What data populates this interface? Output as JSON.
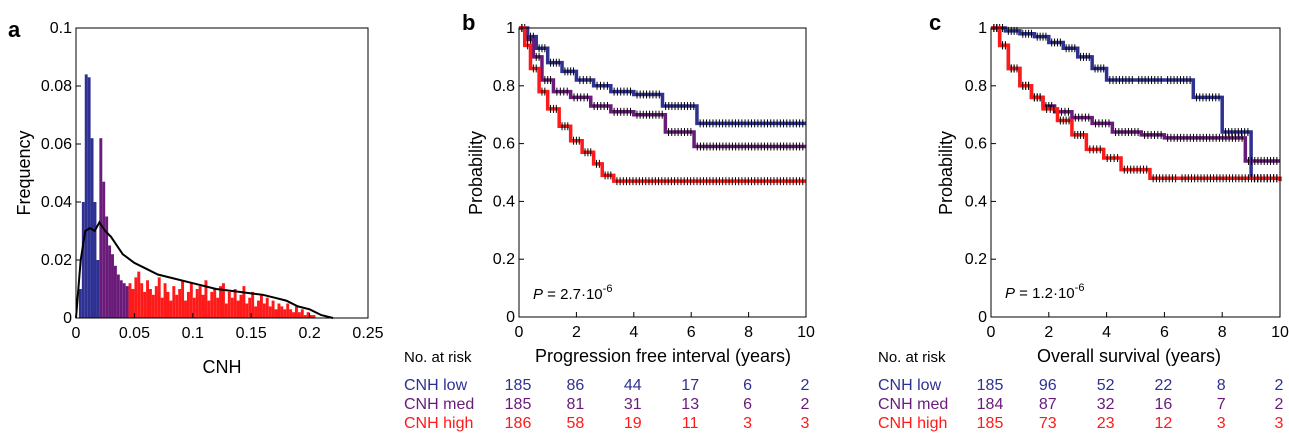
{
  "colors": {
    "low": "#2e3192",
    "med": "#6a1b7a",
    "high": "#ff1a1a",
    "line": "#000000"
  },
  "chart_data": [
    {
      "panel": "a",
      "type": "bar",
      "xlabel": "CNH",
      "ylabel": "Frequency",
      "xlim": [
        0,
        0.25
      ],
      "ylim": [
        0,
        0.1
      ],
      "xticks": [
        "0",
        "0.05",
        "0.1",
        "0.15",
        "0.2",
        "0.25"
      ],
      "yticks": [
        "0",
        "0.02",
        "0.04",
        "0.06",
        "0.08",
        "0.1"
      ],
      "bin_width": 0.0025,
      "bins_low": [
        0.0,
        0.01,
        0.04,
        0.084,
        0.083,
        0.062,
        0.04,
        0.02
      ],
      "bins_med_start": 0.02,
      "bins_med": [
        0.062,
        0.047,
        0.035,
        0.025,
        0.022,
        0.018,
        0.015,
        0.013,
        0.012,
        0.011
      ],
      "bins_high_start": 0.045,
      "bins_high": [
        0.012,
        0.01,
        0.014,
        0.016,
        0.012,
        0.009,
        0.013,
        0.01,
        0.008,
        0.011,
        0.014,
        0.007,
        0.012,
        0.009,
        0.006,
        0.011,
        0.008,
        0.01,
        0.013,
        0.006,
        0.009,
        0.012,
        0.007,
        0.01,
        0.011,
        0.008,
        0.013,
        0.006,
        0.009,
        0.01,
        0.007,
        0.011,
        0.012,
        0.005,
        0.009,
        0.007,
        0.01,
        0.006,
        0.008,
        0.011,
        0.005,
        0.007,
        0.009,
        0.004,
        0.006,
        0.008,
        0.005,
        0.007,
        0.004,
        0.006,
        0.003,
        0.005,
        0.004,
        0.003,
        0.005,
        0.003,
        0.002,
        0.004,
        0.002,
        0.003,
        0.001,
        0.002,
        0.001,
        0.001,
        0.0
      ],
      "density": {
        "x": [
          0.0,
          0.004,
          0.008,
          0.012,
          0.016,
          0.02,
          0.025,
          0.03,
          0.04,
          0.05,
          0.06,
          0.07,
          0.08,
          0.1,
          0.12,
          0.14,
          0.16,
          0.17,
          0.18,
          0.19,
          0.2,
          0.21,
          0.22
        ],
        "y": [
          0.0,
          0.02,
          0.03,
          0.031,
          0.03,
          0.033,
          0.03,
          0.028,
          0.022,
          0.019,
          0.017,
          0.015,
          0.014,
          0.012,
          0.01,
          0.009,
          0.008,
          0.007,
          0.006,
          0.004,
          0.003,
          0.001,
          0.0
        ]
      }
    },
    {
      "panel": "b",
      "type": "line",
      "xlabel": "Progression free interval (years)",
      "ylabel": "Probability",
      "xlim": [
        0,
        10
      ],
      "ylim": [
        0,
        1
      ],
      "xticks": [
        "0",
        "2",
        "4",
        "6",
        "8",
        "10"
      ],
      "yticks": [
        "0",
        "0.2",
        "0.4",
        "0.6",
        "0.8",
        "1"
      ],
      "pvalue": {
        "prefix": "P",
        "mid": " = 2.7·10",
        "exp": "-6"
      },
      "series": [
        {
          "name": "CNH low",
          "key": "low",
          "x": [
            0,
            0.3,
            0.6,
            1.0,
            1.5,
            2.0,
            2.6,
            3.2,
            4.0,
            5.0,
            6.2,
            10
          ],
          "y": [
            1,
            0.97,
            0.93,
            0.88,
            0.85,
            0.82,
            0.8,
            0.78,
            0.77,
            0.73,
            0.67,
            0.67
          ]
        },
        {
          "name": "CNH med",
          "key": "med",
          "x": [
            0,
            0.2,
            0.5,
            0.8,
            1.2,
            1.8,
            2.5,
            3.2,
            4.0,
            5.1,
            6.1,
            10
          ],
          "y": [
            1,
            0.96,
            0.9,
            0.82,
            0.78,
            0.76,
            0.73,
            0.71,
            0.7,
            0.64,
            0.59,
            0.59
          ]
        },
        {
          "name": "CNH high",
          "key": "high",
          "x": [
            0,
            0.2,
            0.4,
            0.7,
            1.0,
            1.4,
            1.8,
            2.2,
            2.6,
            2.9,
            3.3,
            10
          ],
          "y": [
            1,
            0.94,
            0.86,
            0.78,
            0.72,
            0.66,
            0.61,
            0.57,
            0.53,
            0.49,
            0.47,
            0.47
          ]
        }
      ]
    },
    {
      "panel": "c",
      "type": "line",
      "xlabel": "Overall survival (years)",
      "ylabel": "Probability",
      "xlim": [
        0,
        10
      ],
      "ylim": [
        0,
        1
      ],
      "xticks": [
        "0",
        "2",
        "4",
        "6",
        "8",
        "10"
      ],
      "yticks": [
        "0",
        "0.2",
        "0.4",
        "0.6",
        "0.8",
        "1"
      ],
      "pvalue": {
        "prefix": "P",
        "mid": " = 1.2·10",
        "exp": "-6"
      },
      "series": [
        {
          "name": "CNH low",
          "key": "low",
          "x": [
            0,
            0.5,
            1.0,
            1.5,
            2.0,
            2.5,
            3.0,
            3.5,
            4.0,
            5.0,
            6.0,
            7.0,
            8.0,
            9.0,
            10
          ],
          "y": [
            1,
            0.99,
            0.98,
            0.97,
            0.95,
            0.93,
            0.9,
            0.86,
            0.82,
            0.82,
            0.82,
            0.76,
            0.64,
            0.48,
            0.48
          ]
        },
        {
          "name": "CNH med",
          "key": "med",
          "x": [
            0,
            0.3,
            0.6,
            1.0,
            1.4,
            1.8,
            2.2,
            2.8,
            3.5,
            4.2,
            5.2,
            6.0,
            8.8,
            10
          ],
          "y": [
            1,
            0.94,
            0.86,
            0.8,
            0.76,
            0.73,
            0.71,
            0.69,
            0.67,
            0.64,
            0.63,
            0.62,
            0.54,
            0.54
          ]
        },
        {
          "name": "CNH high",
          "key": "high",
          "x": [
            0,
            0.3,
            0.6,
            1.0,
            1.4,
            1.8,
            2.3,
            2.8,
            3.3,
            3.9,
            4.5,
            5.5,
            6.5,
            10
          ],
          "y": [
            1,
            0.94,
            0.86,
            0.8,
            0.76,
            0.72,
            0.68,
            0.63,
            0.58,
            0.55,
            0.51,
            0.48,
            0.48,
            0.47
          ]
        }
      ]
    }
  ],
  "panel_labels": {
    "a": "a",
    "b": "b",
    "c": "c"
  },
  "risk_tables": [
    {
      "header": "No. at risk",
      "rows": [
        {
          "label": "CNH low",
          "key": "low",
          "values": [
            "185",
            "86",
            "44",
            "17",
            "6",
            "2"
          ]
        },
        {
          "label": "CNH med",
          "key": "med",
          "values": [
            "185",
            "81",
            "31",
            "13",
            "6",
            "2"
          ]
        },
        {
          "label": "CNH high",
          "key": "high",
          "values": [
            "186",
            "58",
            "19",
            "11",
            "3",
            "3"
          ]
        }
      ]
    },
    {
      "header": "No. at risk",
      "rows": [
        {
          "label": "CNH low",
          "key": "low",
          "values": [
            "185",
            "96",
            "52",
            "22",
            "8",
            "2"
          ]
        },
        {
          "label": "CNH med",
          "key": "med",
          "values": [
            "184",
            "87",
            "32",
            "16",
            "7",
            "2"
          ]
        },
        {
          "label": "CNH high",
          "key": "high",
          "values": [
            "185",
            "73",
            "23",
            "12",
            "3",
            "3"
          ]
        }
      ]
    }
  ]
}
